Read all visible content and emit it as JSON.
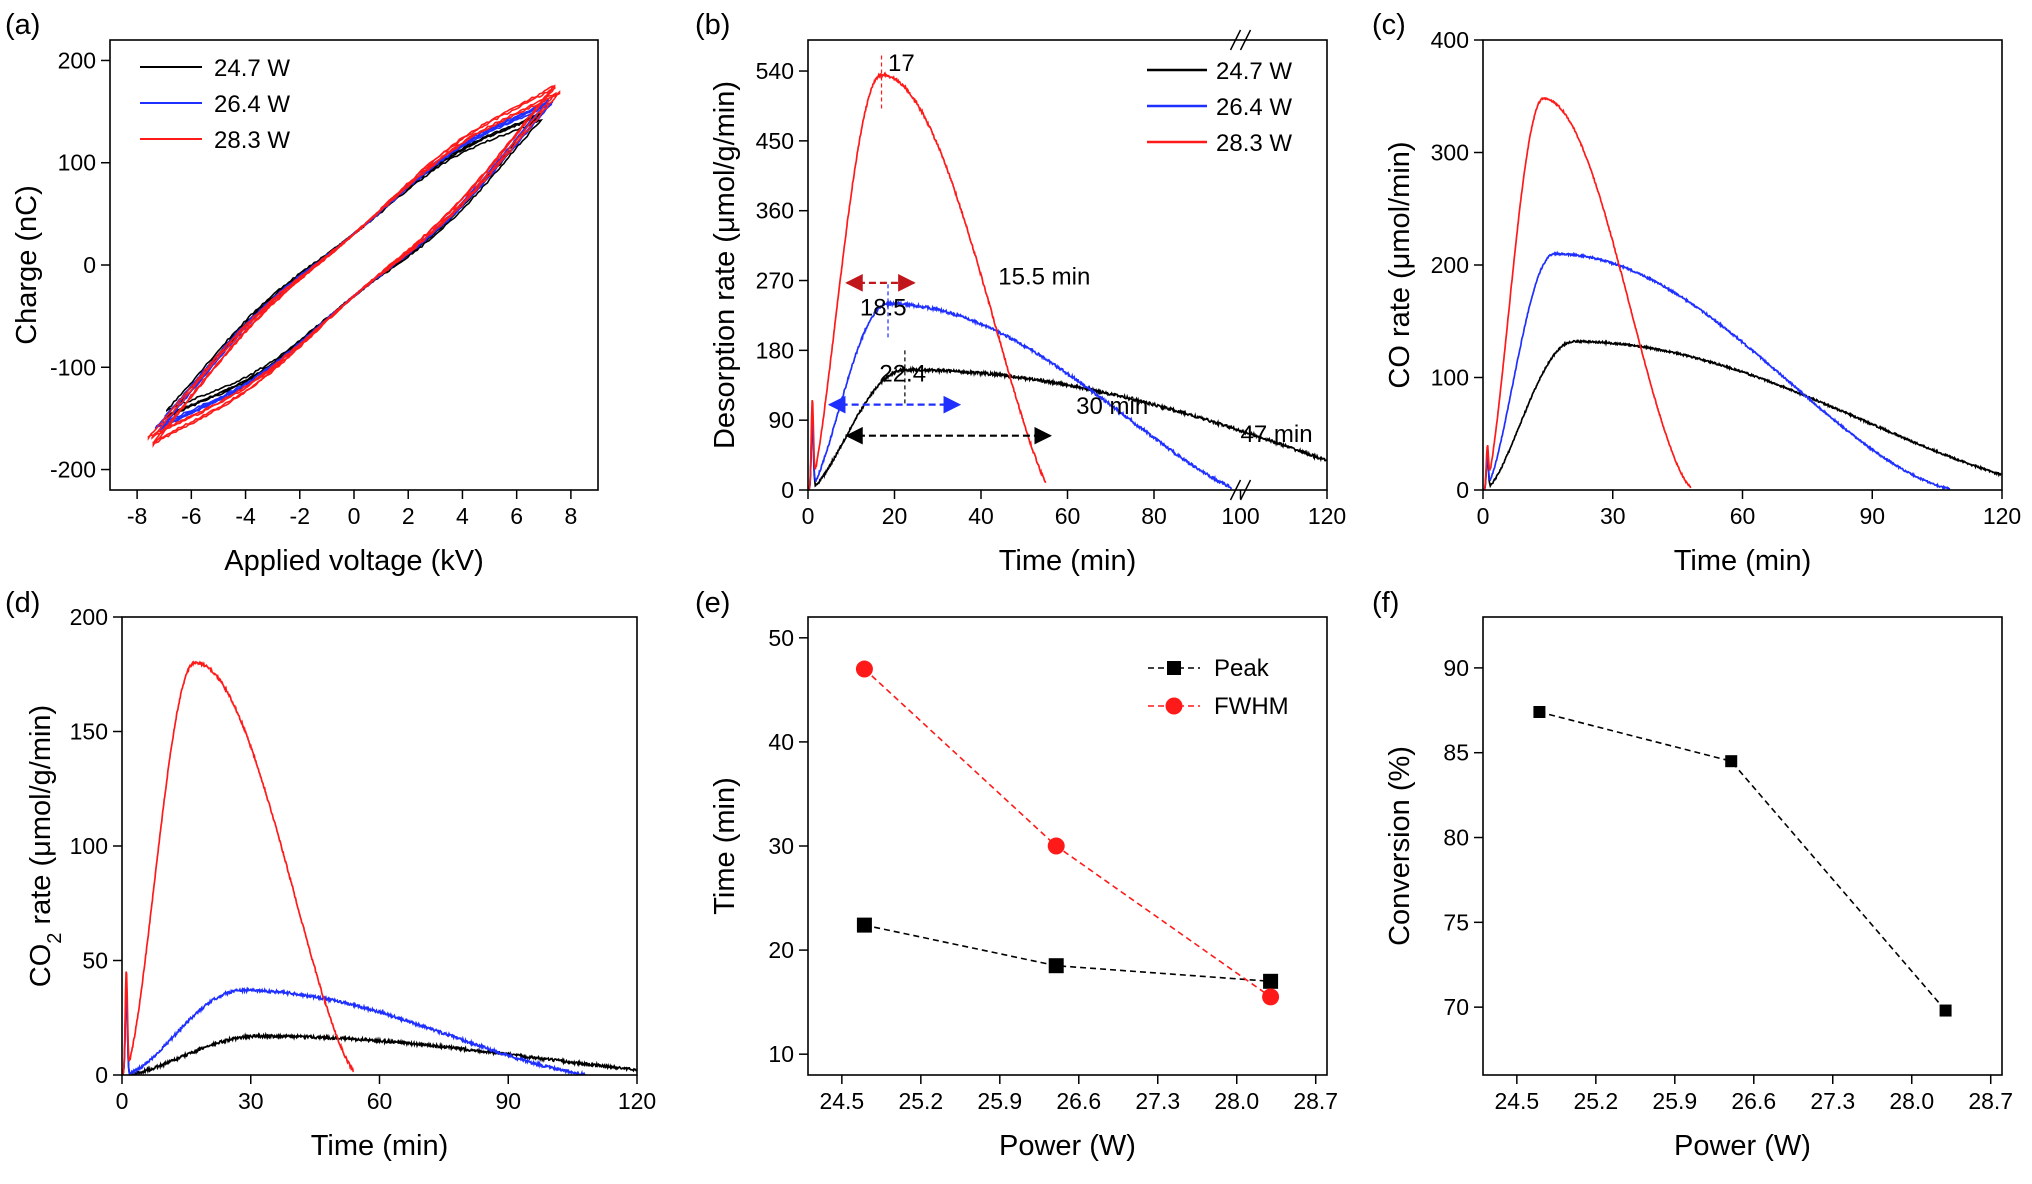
{
  "colors": {
    "black": "#000000",
    "blue": "#1f2fff",
    "red": "#ff1a1a",
    "darkred": "#c0161c"
  },
  "chart_data": [
    {
      "panel_label": "(a)",
      "type": "line",
      "xlabel": "Applied voltage (kV)",
      "ylabel": "Charge (nC)",
      "xlim": [
        -9,
        9
      ],
      "ylim": [
        -220,
        220
      ],
      "xticks": [
        -8,
        -6,
        -4,
        -2,
        0,
        2,
        4,
        6,
        8
      ],
      "yticks": [
        -200,
        -100,
        0,
        100,
        200
      ],
      "legend_position": "top-left",
      "series": [
        {
          "name": "24.7 W",
          "color": "#000000",
          "vmax": 6.9,
          "qmax": 145
        },
        {
          "name": "26.4 W",
          "color": "#1f2fff",
          "vmax": 7.2,
          "qmax": 160
        },
        {
          "name": "28.3 W",
          "color": "#ff1a1a",
          "vmax": 7.5,
          "qmax": 172
        }
      ]
    },
    {
      "panel_label": "(b)",
      "type": "line",
      "xlabel": "Time (min)",
      "ylabel": "Desorption rate (μmol/g/min)",
      "xlim": [
        0,
        120
      ],
      "ylim": [
        0,
        580
      ],
      "axis_break": [
        100,
        100
      ],
      "xticks": [
        0,
        20,
        40,
        60,
        80,
        100,
        120
      ],
      "yticks": [
        0,
        90,
        180,
        270,
        360,
        450,
        540
      ],
      "legend_position": "top-right",
      "series": [
        {
          "name": "24.7 W",
          "color": "#000000",
          "peak_x": 22.4,
          "peak_y": 155,
          "end_x": 120
        },
        {
          "name": "26.4 W",
          "color": "#1f2fff",
          "peak_x": 18.5,
          "peak_y": 240,
          "end_x": 98
        },
        {
          "name": "28.3 W",
          "color": "#ff1a1a",
          "peak_x": 17,
          "peak_y": 535,
          "end_x": 55
        }
      ],
      "annotations": [
        {
          "text": "17",
          "color": "#c0161c",
          "x": 18.5,
          "y": 540
        },
        {
          "text": "15.5 min",
          "color": "#c0161c",
          "x": 44,
          "y": 265
        },
        {
          "text": "18.5",
          "color": "#1f2fff",
          "x": 12,
          "y": 225
        },
        {
          "text": "22.4",
          "color": "#000000",
          "x": 16.5,
          "y": 140
        },
        {
          "text": "30 min",
          "color": "#1f2fff",
          "x": 62,
          "y": 98
        },
        {
          "text": "47 min",
          "color": "#000000",
          "x": 100,
          "y": 62
        }
      ],
      "fwhm_arrows": [
        {
          "x1": 9,
          "x2": 24.5,
          "y": 267,
          "color": "#c0161c"
        },
        {
          "x1": 5,
          "x2": 35,
          "y": 110,
          "color": "#1f2fff"
        },
        {
          "x1": 9,
          "x2": 56,
          "y": 70,
          "color": "#000000"
        }
      ]
    },
    {
      "panel_label": "(c)",
      "type": "line",
      "xlabel": "Time (min)",
      "ylabel": "CO rate (μmol/min)",
      "xlim": [
        0,
        120
      ],
      "ylim": [
        0,
        400
      ],
      "xticks": [
        0,
        30,
        60,
        90,
        120
      ],
      "yticks": [
        0,
        100,
        200,
        300,
        400
      ],
      "series": [
        {
          "name": "24.7 W",
          "color": "#000000",
          "peak_x": 21,
          "peak_y": 132,
          "end_x": 120
        },
        {
          "name": "26.4 W",
          "color": "#1f2fff",
          "peak_x": 16.5,
          "peak_y": 210,
          "end_x": 108
        },
        {
          "name": "28.3 W",
          "color": "#ff1a1a",
          "peak_x": 14,
          "peak_y": 348,
          "end_x": 48
        }
      ]
    },
    {
      "panel_label": "(d)",
      "type": "line",
      "xlabel": "Time (min)",
      "ylabel": "CO2 rate (μmol/g/min)",
      "xlim": [
        0,
        120
      ],
      "ylim": [
        0,
        200
      ],
      "xticks": [
        0,
        30,
        60,
        90,
        120
      ],
      "yticks": [
        0,
        50,
        100,
        150,
        200
      ],
      "series": [
        {
          "name": "24.7 W",
          "color": "#000000",
          "peak_x": 32,
          "peak_y": 17,
          "end_x": 120
        },
        {
          "name": "26.4 W",
          "color": "#1f2fff",
          "peak_x": 28,
          "peak_y": 37,
          "end_x": 108
        },
        {
          "name": "28.3 W",
          "color": "#ff1a1a",
          "peak_x": 17,
          "peak_y": 180,
          "end_x": 54
        }
      ]
    },
    {
      "panel_label": "(e)",
      "type": "scatter",
      "xlabel": "Power (W)",
      "ylabel": "Time (min)",
      "xlim": [
        24.2,
        28.8
      ],
      "ylim": [
        8,
        52
      ],
      "xticks": [
        24.5,
        25.2,
        25.9,
        26.6,
        27.3,
        28.0,
        28.7
      ],
      "yticks": [
        10,
        20,
        30,
        40,
        50
      ],
      "legend_position": "top-right",
      "series": [
        {
          "name": "Peak",
          "color": "#000000",
          "marker": "square",
          "x": [
            24.7,
            26.4,
            28.3
          ],
          "y": [
            22.4,
            18.5,
            17
          ]
        },
        {
          "name": "FWHM",
          "color": "#ff1a1a",
          "marker": "circle",
          "x": [
            24.7,
            26.4,
            28.3
          ],
          "y": [
            47,
            30,
            15.5
          ]
        }
      ]
    },
    {
      "panel_label": "(f)",
      "type": "scatter",
      "xlabel": "Power (W)",
      "ylabel": "Conversion (%)",
      "xlim": [
        24.2,
        28.8
      ],
      "ylim": [
        66,
        93
      ],
      "xticks": [
        24.5,
        25.2,
        25.9,
        26.6,
        27.3,
        28.0,
        28.7
      ],
      "yticks": [
        70,
        75,
        80,
        85,
        90
      ],
      "series": [
        {
          "color": "#000000",
          "marker": "square",
          "x": [
            24.7,
            26.4,
            28.3
          ],
          "y": [
            87.4,
            84.5,
            69.8
          ]
        }
      ]
    }
  ]
}
